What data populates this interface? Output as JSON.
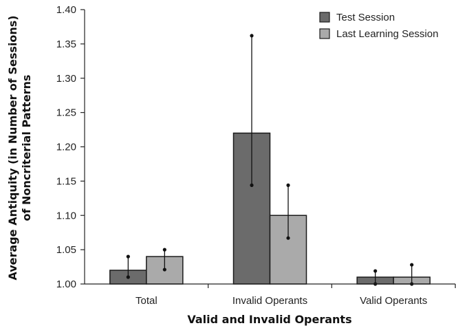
{
  "chart_data": {
    "type": "bar",
    "title": "",
    "xlabel": "Valid and Invalid Operants",
    "ylabel_line1": "Average Antiquity (in Number of Sessions)",
    "ylabel_line2": "of Noncriterial Patterns",
    "ylim": [
      1.0,
      1.4
    ],
    "yticks": [
      "1.00",
      "1.05",
      "1.10",
      "1.15",
      "1.20",
      "1.25",
      "1.30",
      "1.35",
      "1.40"
    ],
    "categories": [
      "Total",
      "Invalid Operants",
      "Valid Operants"
    ],
    "series": [
      {
        "name": "Test Session",
        "color": "#6b6b6b",
        "values": [
          1.02,
          1.22,
          1.01
        ],
        "error_low": [
          1.01,
          1.144,
          1.0
        ],
        "error_high": [
          1.04,
          1.362,
          1.019
        ]
      },
      {
        "name": "Last Learning Session",
        "color": "#aaaaaa",
        "values": [
          1.04,
          1.1,
          1.01
        ],
        "error_low": [
          1.021,
          1.067,
          1.0
        ],
        "error_high": [
          1.05,
          1.144,
          1.028
        ]
      }
    ],
    "legend_position": "top-right",
    "grid": false
  }
}
